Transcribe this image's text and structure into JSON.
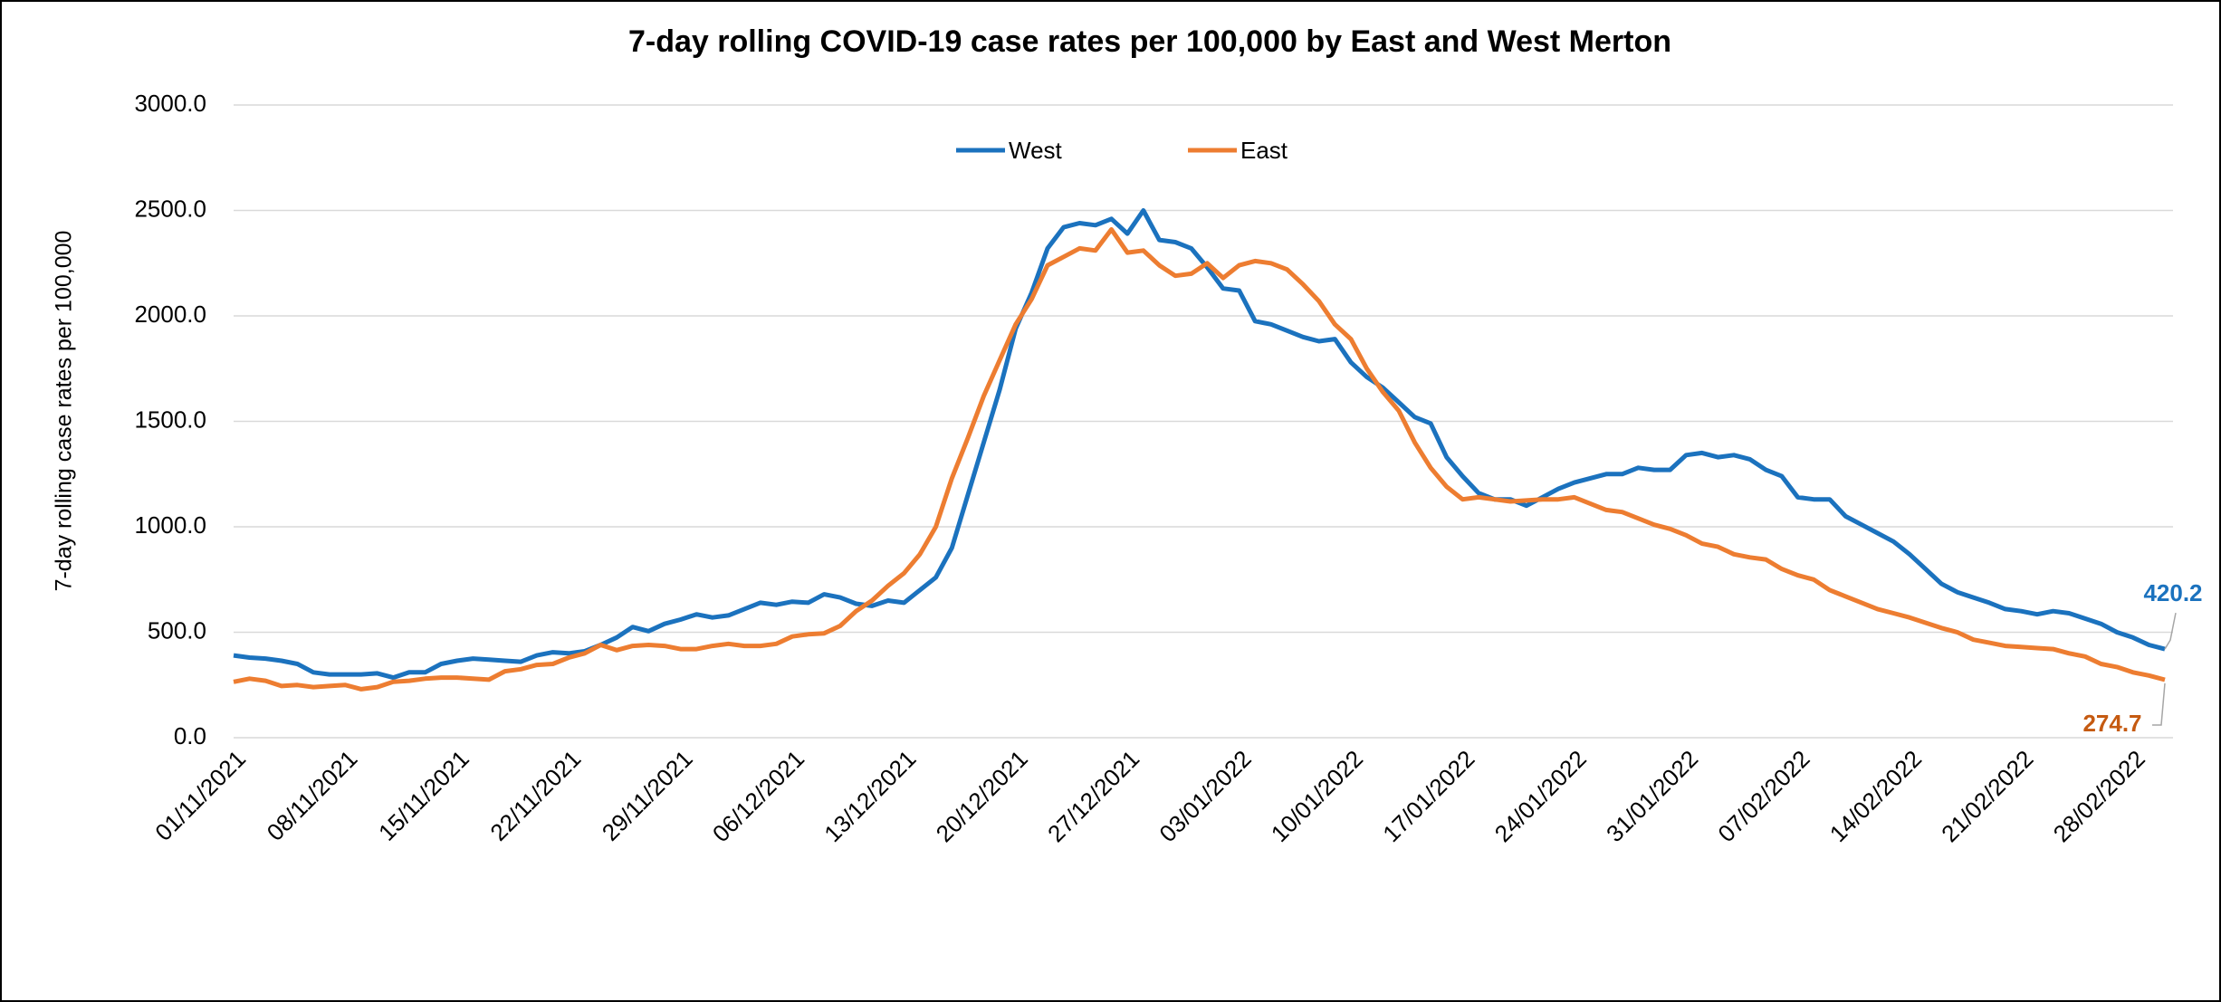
{
  "chart_data": {
    "type": "line",
    "title": "7-day rolling COVID-19 case rates per 100,000 by East and West Merton",
    "y_label": "7-day rolling case rates per 100,000",
    "categories": [
      "01/11/2021",
      null,
      null,
      null,
      null,
      null,
      null,
      "08/11/2021",
      null,
      null,
      null,
      null,
      null,
      null,
      "15/11/2021",
      null,
      null,
      null,
      null,
      null,
      null,
      "22/11/2021",
      null,
      null,
      null,
      null,
      null,
      null,
      "29/11/2021",
      null,
      null,
      null,
      null,
      null,
      null,
      "06/12/2021",
      null,
      null,
      null,
      null,
      null,
      null,
      "13/12/2021",
      null,
      null,
      null,
      null,
      null,
      null,
      "20/12/2021",
      null,
      null,
      null,
      null,
      null,
      null,
      "27/12/2021",
      null,
      null,
      null,
      null,
      null,
      null,
      "03/01/2022",
      null,
      null,
      null,
      null,
      null,
      null,
      "10/01/2022",
      null,
      null,
      null,
      null,
      null,
      null,
      "17/01/2022",
      null,
      null,
      null,
      null,
      null,
      null,
      "24/01/2022",
      null,
      null,
      null,
      null,
      null,
      null,
      "31/01/2022",
      null,
      null,
      null,
      null,
      null,
      null,
      "07/02/2022",
      null,
      null,
      null,
      null,
      null,
      null,
      "14/02/2022",
      null,
      null,
      null,
      null,
      null,
      null,
      "21/02/2022",
      null,
      null,
      null,
      null,
      null,
      null,
      "28/02/2022",
      null,
      null
    ],
    "series": [
      {
        "name": "West",
        "color": "#1b72be",
        "label_color": "#1b72be",
        "values": [
          390,
          380,
          375,
          365,
          350,
          310,
          300,
          300,
          300,
          305,
          285,
          310,
          310,
          350,
          365,
          375,
          370,
          365,
          360,
          390,
          405,
          400,
          410,
          440,
          475,
          525,
          505,
          540,
          560,
          585,
          570,
          580,
          610,
          640,
          630,
          645,
          640,
          680,
          665,
          635,
          625,
          650,
          640,
          700,
          760,
          900,
          1150,
          1400,
          1650,
          1940,
          2110,
          2320,
          2420,
          2440,
          2430,
          2460,
          2390,
          2500,
          2360,
          2350,
          2320,
          2230,
          2130,
          2120,
          1975,
          1960,
          1930,
          1900,
          1880,
          1890,
          1780,
          1710,
          1660,
          1590,
          1520,
          1490,
          1330,
          1240,
          1160,
          1130,
          1130,
          1100,
          1140,
          1180,
          1210,
          1230,
          1250,
          1250,
          1280,
          1270,
          1270,
          1340,
          1350,
          1330,
          1340,
          1320,
          1270,
          1240,
          1140,
          1130,
          1130,
          1050,
          1010,
          970,
          930,
          870,
          800,
          730,
          690,
          665,
          640,
          610,
          600,
          585,
          600,
          590,
          565,
          540,
          500,
          475,
          440,
          420.2
        ]
      },
      {
        "name": "East",
        "color": "#ed7d31",
        "label_color": "#c55a11",
        "values": [
          265,
          280,
          270,
          245,
          250,
          240,
          245,
          250,
          230,
          240,
          265,
          270,
          280,
          285,
          285,
          280,
          275,
          315,
          325,
          345,
          350,
          380,
          400,
          440,
          415,
          435,
          440,
          435,
          420,
          420,
          435,
          445,
          435,
          435,
          445,
          480,
          490,
          495,
          530,
          600,
          650,
          720,
          780,
          870,
          1000,
          1230,
          1420,
          1620,
          1790,
          1960,
          2080,
          2240,
          2280,
          2320,
          2310,
          2410,
          2300,
          2310,
          2240,
          2190,
          2200,
          2250,
          2180,
          2240,
          2260,
          2250,
          2220,
          2150,
          2070,
          1960,
          1890,
          1750,
          1640,
          1550,
          1400,
          1280,
          1190,
          1130,
          1140,
          1130,
          1120,
          1125,
          1130,
          1130,
          1140,
          1110,
          1080,
          1070,
          1040,
          1010,
          990,
          960,
          920,
          905,
          870,
          855,
          845,
          800,
          770,
          750,
          700,
          670,
          640,
          610,
          590,
          570,
          545,
          520,
          500,
          465,
          450,
          435,
          430,
          425,
          420,
          400,
          385,
          350,
          335,
          310,
          295,
          274.7
        ]
      }
    ],
    "ylim": [
      0,
      3000
    ],
    "yticks": [
      {
        "value": 0,
        "label": "0.0"
      },
      {
        "value": 500,
        "label": "500.0"
      },
      {
        "value": 1000,
        "label": "1000.0"
      },
      {
        "value": 1500,
        "label": "1500.0"
      },
      {
        "value": 2000,
        "label": "2000.0"
      },
      {
        "value": 2500,
        "label": "2500.0"
      },
      {
        "value": 3000,
        "label": "3000.0"
      }
    ],
    "grid": true,
    "legend": "top"
  }
}
